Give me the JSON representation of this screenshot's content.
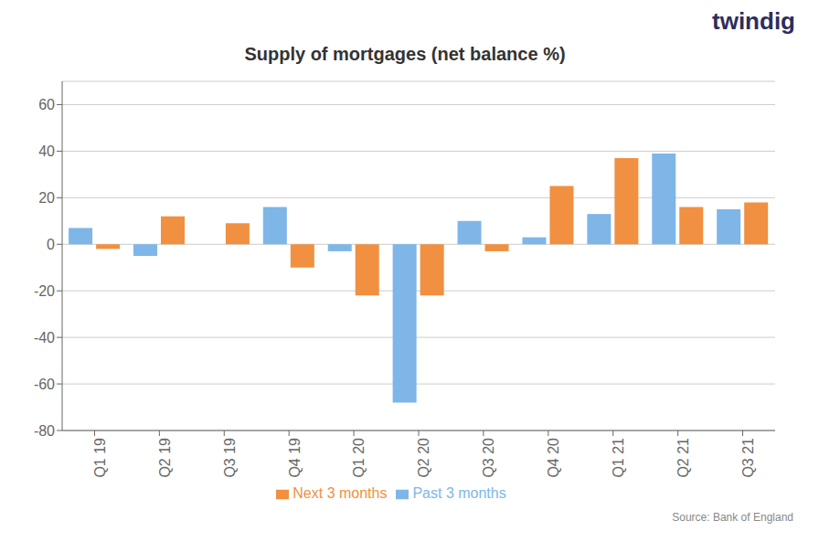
{
  "chart_data": {
    "type": "bar",
    "title": "Supply of mortgages (net balance %)",
    "categories": [
      "Q1 19",
      "Q2 19",
      "Q3 19",
      "Q4 19",
      "Q1 20",
      "Q2 20",
      "Q3 20",
      "Q4 20",
      "Q1 21",
      "Q2 21",
      "Q3 21"
    ],
    "series": [
      {
        "name": "Past 3 months",
        "color": "#7eb6e8",
        "values": [
          7,
          -5,
          0,
          16,
          -3,
          -68,
          10,
          3,
          13,
          39,
          15
        ]
      },
      {
        "name": "Next 3 months",
        "color": "#f09040",
        "values": [
          -2,
          12,
          9,
          -10,
          -22,
          -22,
          -3,
          25,
          37,
          16,
          18
        ]
      }
    ],
    "ylim": [
      -80,
      70
    ],
    "yticks": [
      -80,
      -60,
      -40,
      -20,
      0,
      20,
      40,
      60
    ],
    "grid": true,
    "legend": "bottom",
    "annotations": [
      "Source: Bank of England",
      "twindig"
    ]
  }
}
